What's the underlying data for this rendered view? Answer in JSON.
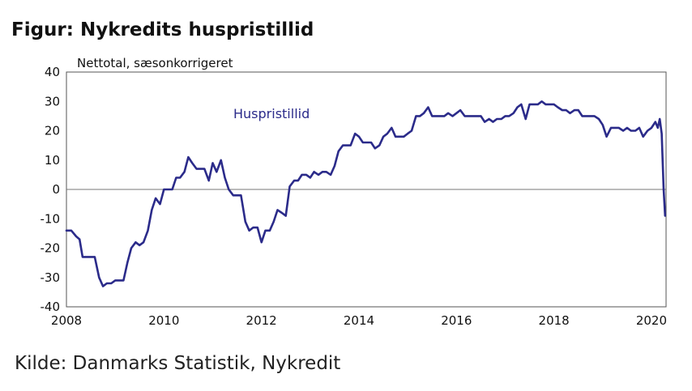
{
  "title": "Figur: Nykredits huspristillid",
  "source": "Kilde: Danmarks Statistik, Nykredit",
  "chart_data": {
    "type": "line",
    "ylabel": "Nettotal, sæsonkorrigeret",
    "xlim": [
      2008,
      2020.3
    ],
    "ylim": [
      -40,
      40
    ],
    "yticks": [
      40,
      30,
      20,
      10,
      0,
      -10,
      -20,
      -30,
      -40
    ],
    "xticks": [
      "2008",
      "2010",
      "2012",
      "2014",
      "2016",
      "2018",
      "2020"
    ],
    "grid": false,
    "zero_line": true,
    "color": "#2b2b8a",
    "series": [
      {
        "name": "Huspristillid",
        "points": [
          [
            2008.0,
            -14
          ],
          [
            2008.1,
            -14
          ],
          [
            2008.2,
            -16
          ],
          [
            2008.27,
            -17
          ],
          [
            2008.33,
            -23
          ],
          [
            2008.5,
            -23
          ],
          [
            2008.58,
            -23
          ],
          [
            2008.67,
            -30
          ],
          [
            2008.75,
            -33
          ],
          [
            2008.83,
            -32
          ],
          [
            2008.92,
            -32
          ],
          [
            2009.0,
            -31
          ],
          [
            2009.08,
            -31
          ],
          [
            2009.17,
            -31
          ],
          [
            2009.25,
            -25
          ],
          [
            2009.33,
            -20
          ],
          [
            2009.42,
            -18
          ],
          [
            2009.5,
            -19
          ],
          [
            2009.58,
            -18
          ],
          [
            2009.67,
            -14
          ],
          [
            2009.75,
            -7
          ],
          [
            2009.83,
            -3
          ],
          [
            2009.92,
            -5
          ],
          [
            2010.0,
            0
          ],
          [
            2010.08,
            0
          ],
          [
            2010.17,
            0
          ],
          [
            2010.25,
            4
          ],
          [
            2010.33,
            4
          ],
          [
            2010.42,
            6
          ],
          [
            2010.5,
            11
          ],
          [
            2010.58,
            9
          ],
          [
            2010.67,
            7
          ],
          [
            2010.75,
            7
          ],
          [
            2010.83,
            7
          ],
          [
            2010.92,
            3
          ],
          [
            2011.0,
            9
          ],
          [
            2011.08,
            6
          ],
          [
            2011.17,
            10
          ],
          [
            2011.25,
            4
          ],
          [
            2011.33,
            0
          ],
          [
            2011.42,
            -2
          ],
          [
            2011.5,
            -2
          ],
          [
            2011.58,
            -2
          ],
          [
            2011.67,
            -11
          ],
          [
            2011.75,
            -14
          ],
          [
            2011.83,
            -13
          ],
          [
            2011.92,
            -13
          ],
          [
            2012.0,
            -18
          ],
          [
            2012.08,
            -14
          ],
          [
            2012.17,
            -14
          ],
          [
            2012.25,
            -11
          ],
          [
            2012.33,
            -7
          ],
          [
            2012.42,
            -8
          ],
          [
            2012.5,
            -9
          ],
          [
            2012.58,
            1
          ],
          [
            2012.67,
            3
          ],
          [
            2012.75,
            3
          ],
          [
            2012.83,
            5
          ],
          [
            2012.92,
            5
          ],
          [
            2013.0,
            4
          ],
          [
            2013.08,
            6
          ],
          [
            2013.17,
            5
          ],
          [
            2013.25,
            6
          ],
          [
            2013.33,
            6
          ],
          [
            2013.42,
            5
          ],
          [
            2013.5,
            8
          ],
          [
            2013.58,
            13
          ],
          [
            2013.67,
            15
          ],
          [
            2013.75,
            15
          ],
          [
            2013.83,
            15
          ],
          [
            2013.92,
            19
          ],
          [
            2014.0,
            18
          ],
          [
            2014.08,
            16
          ],
          [
            2014.17,
            16
          ],
          [
            2014.25,
            16
          ],
          [
            2014.33,
            14
          ],
          [
            2014.42,
            15
          ],
          [
            2014.5,
            18
          ],
          [
            2014.58,
            19
          ],
          [
            2014.67,
            21
          ],
          [
            2014.75,
            18
          ],
          [
            2014.83,
            18
          ],
          [
            2014.92,
            18
          ],
          [
            2015.0,
            19
          ],
          [
            2015.08,
            20
          ],
          [
            2015.17,
            25
          ],
          [
            2015.25,
            25
          ],
          [
            2015.33,
            26
          ],
          [
            2015.42,
            28
          ],
          [
            2015.5,
            25
          ],
          [
            2015.58,
            25
          ],
          [
            2015.67,
            25
          ],
          [
            2015.75,
            25
          ],
          [
            2015.83,
            26
          ],
          [
            2015.92,
            25
          ],
          [
            2016.0,
            26
          ],
          [
            2016.08,
            27
          ],
          [
            2016.17,
            25
          ],
          [
            2016.25,
            25
          ],
          [
            2016.33,
            25
          ],
          [
            2016.42,
            25
          ],
          [
            2016.5,
            25
          ],
          [
            2016.58,
            23
          ],
          [
            2016.67,
            24
          ],
          [
            2016.75,
            23
          ],
          [
            2016.83,
            24
          ],
          [
            2016.92,
            24
          ],
          [
            2017.0,
            25
          ],
          [
            2017.08,
            25
          ],
          [
            2017.17,
            26
          ],
          [
            2017.25,
            28
          ],
          [
            2017.33,
            29
          ],
          [
            2017.42,
            24
          ],
          [
            2017.5,
            29
          ],
          [
            2017.58,
            29
          ],
          [
            2017.67,
            29
          ],
          [
            2017.75,
            30
          ],
          [
            2017.83,
            29
          ],
          [
            2017.92,
            29
          ],
          [
            2018.0,
            29
          ],
          [
            2018.08,
            28
          ],
          [
            2018.17,
            27
          ],
          [
            2018.25,
            27
          ],
          [
            2018.33,
            26
          ],
          [
            2018.42,
            27
          ],
          [
            2018.5,
            27
          ],
          [
            2018.58,
            25
          ],
          [
            2018.67,
            25
          ],
          [
            2018.75,
            25
          ],
          [
            2018.83,
            25
          ],
          [
            2018.92,
            24
          ],
          [
            2019.0,
            22
          ],
          [
            2019.08,
            18
          ],
          [
            2019.17,
            21
          ],
          [
            2019.25,
            21
          ],
          [
            2019.33,
            21
          ],
          [
            2019.42,
            20
          ],
          [
            2019.5,
            21
          ],
          [
            2019.58,
            20
          ],
          [
            2019.67,
            20
          ],
          [
            2019.75,
            21
          ],
          [
            2019.83,
            18
          ],
          [
            2019.92,
            20
          ],
          [
            2020.0,
            21
          ],
          [
            2020.08,
            23
          ],
          [
            2020.13,
            21
          ],
          [
            2020.17,
            24
          ],
          [
            2020.21,
            19
          ],
          [
            2020.25,
            0
          ],
          [
            2020.28,
            -9
          ]
        ]
      }
    ]
  }
}
